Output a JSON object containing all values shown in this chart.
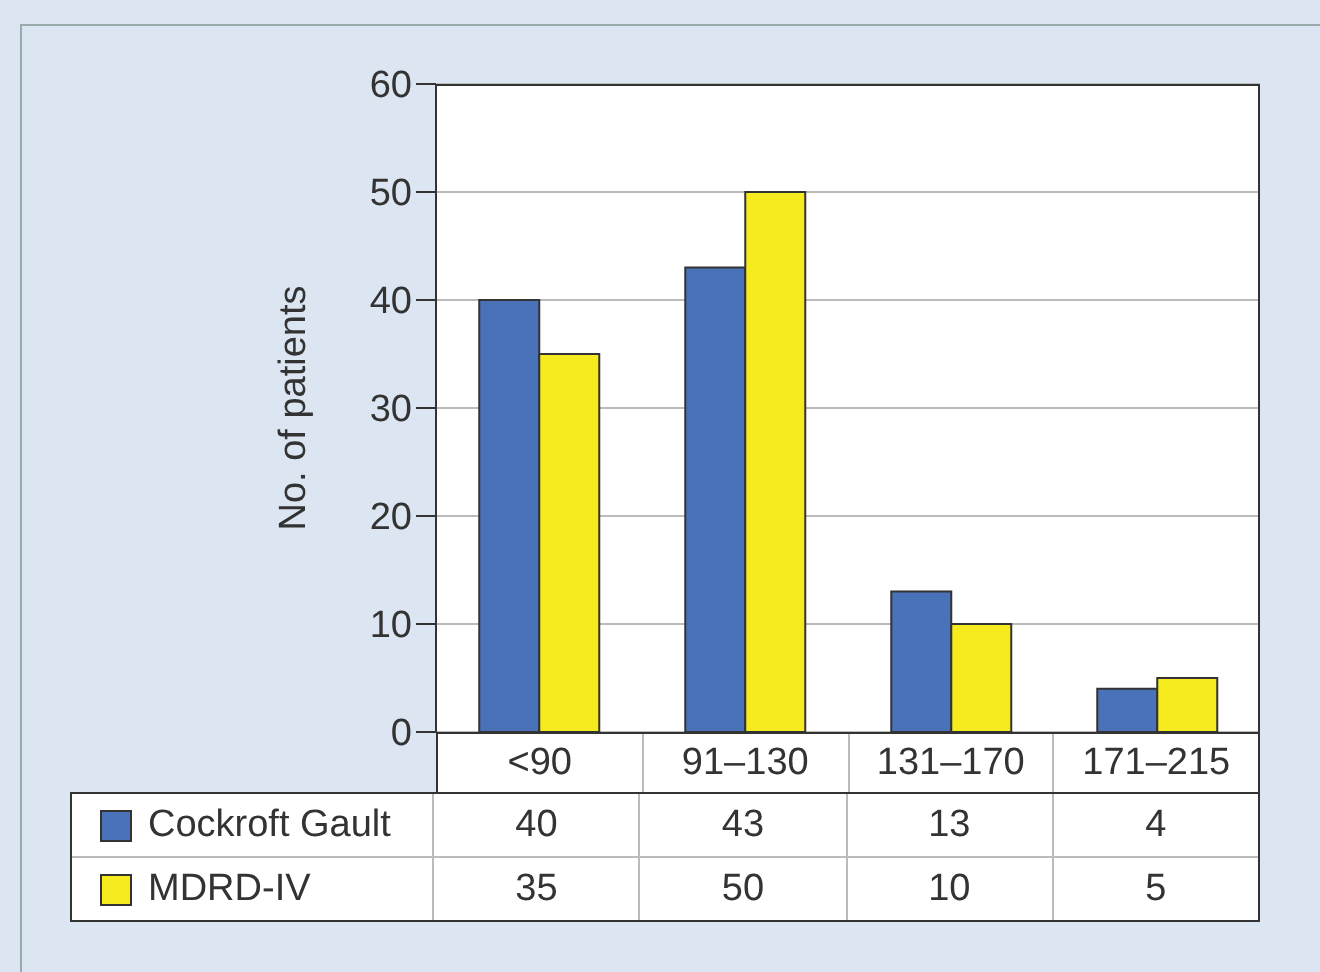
{
  "chart_data": {
    "type": "bar",
    "ylabel": "No. of patients",
    "categories": [
      "<90",
      "91–130",
      "131–170",
      "171–215"
    ],
    "series": [
      {
        "name": "Cockroft Gault",
        "color": "#4a72b8",
        "values": [
          40,
          43,
          13,
          4
        ]
      },
      {
        "name": "MDRD-IV",
        "color": "#f5eb1e",
        "values": [
          35,
          50,
          10,
          5
        ]
      }
    ],
    "ylim": [
      0,
      60
    ],
    "yticks": [
      0,
      10,
      20,
      30,
      40,
      50,
      60
    ],
    "grid": "y",
    "legend": "bottom",
    "data_labels": true
  }
}
